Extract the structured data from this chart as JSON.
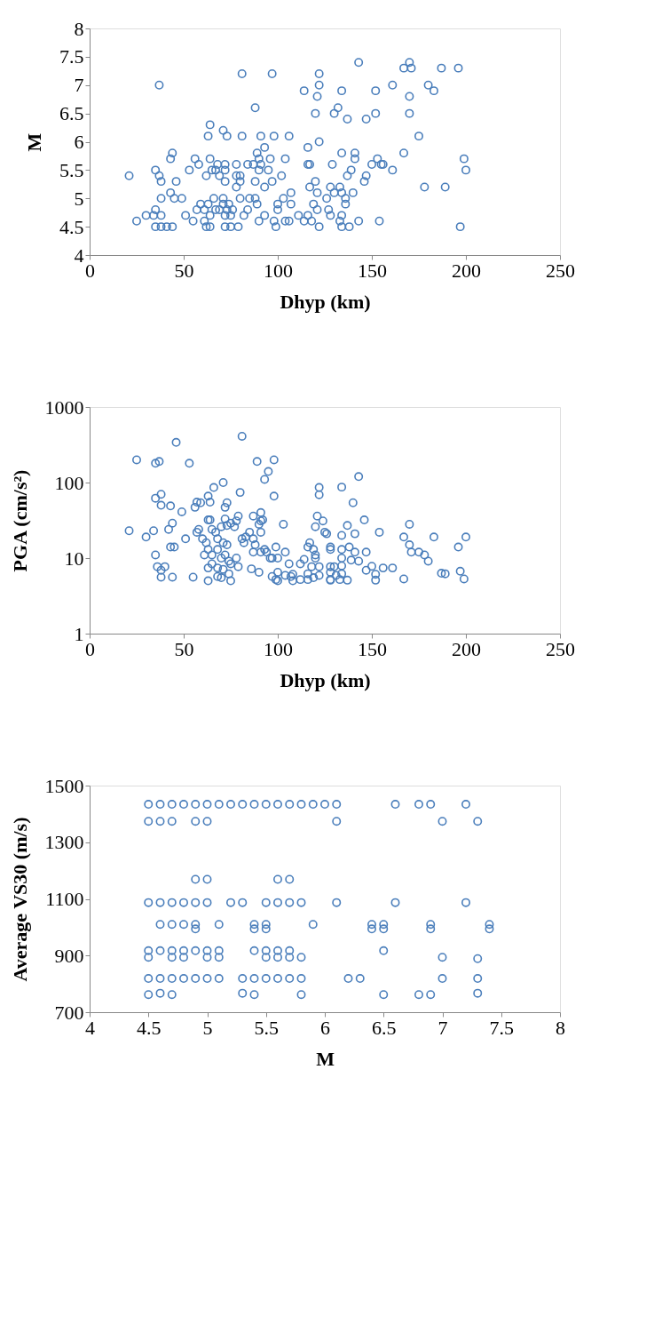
{
  "chart_data": [
    {
      "type": "scatter",
      "xlabel": "Dhyp (km)",
      "ylabel": "M",
      "color": "#4a7ebb",
      "marker": "circle",
      "xlim": [
        0,
        250
      ],
      "xticks": [
        0,
        50,
        100,
        150,
        200,
        250
      ],
      "ylim": [
        4,
        8
      ],
      "yticks": [
        4,
        4.5,
        5,
        5.5,
        6,
        6.5,
        7,
        7.5,
        8
      ],
      "x": [
        37,
        81,
        97,
        122,
        122,
        114,
        121,
        120,
        88,
        64,
        63,
        71,
        73,
        81,
        91,
        98,
        106,
        122,
        116,
        93,
        44,
        43,
        56,
        58,
        64,
        53,
        35,
        37,
        21,
        38,
        46,
        43,
        38,
        45,
        49,
        35,
        30,
        34,
        38,
        25,
        35,
        38,
        41,
        44,
        51,
        55,
        57,
        59,
        63,
        66,
        62,
        65,
        67,
        68,
        72,
        72,
        72,
        69,
        78,
        78,
        80,
        80,
        78,
        84,
        87,
        90,
        89,
        90,
        91,
        95,
        96,
        88,
        93,
        97,
        102,
        104,
        61,
        61,
        62,
        64,
        64,
        67,
        69,
        71,
        71,
        72,
        72,
        73,
        74,
        75,
        76,
        75,
        79,
        80,
        82,
        84,
        85,
        88,
        89,
        90,
        93,
        98,
        99,
        100,
        100,
        103,
        107,
        107,
        104,
        106,
        111,
        114,
        116,
        118,
        119,
        121,
        122,
        121,
        120,
        117,
        116,
        117,
        143,
        170,
        167,
        171,
        187,
        196,
        134,
        152,
        161,
        180,
        183,
        170,
        132,
        130,
        137,
        147,
        152,
        170,
        175,
        134,
        141,
        141,
        129,
        167,
        153,
        150,
        155,
        156,
        161,
        139,
        137,
        147,
        146,
        199,
        200,
        178,
        189,
        128,
        133,
        130,
        134,
        140,
        136,
        136,
        126,
        127,
        128,
        134,
        133,
        134,
        138,
        143,
        154,
        197
      ],
      "values": [
        7.0,
        7.2,
        7.2,
        7.2,
        7.0,
        6.9,
        6.8,
        6.5,
        6.6,
        6.3,
        6.1,
        6.2,
        6.1,
        6.1,
        6.1,
        6.1,
        6.1,
        6.0,
        5.9,
        5.9,
        5.8,
        5.7,
        5.7,
        5.6,
        5.7,
        5.5,
        5.5,
        5.4,
        5.4,
        5.3,
        5.3,
        5.1,
        5.0,
        5.0,
        5.0,
        4.8,
        4.7,
        4.7,
        4.7,
        4.6,
        4.5,
        4.5,
        4.5,
        4.5,
        4.7,
        4.6,
        4.8,
        4.9,
        4.9,
        5.0,
        5.4,
        5.5,
        5.5,
        5.6,
        5.6,
        5.5,
        5.3,
        5.4,
        5.6,
        5.4,
        5.4,
        5.3,
        5.2,
        5.6,
        5.6,
        5.7,
        5.8,
        5.5,
        5.6,
        5.5,
        5.7,
        5.3,
        5.2,
        5.3,
        5.4,
        5.7,
        4.8,
        4.6,
        4.5,
        4.7,
        4.5,
        4.8,
        4.8,
        5.0,
        4.9,
        4.7,
        4.5,
        4.8,
        4.9,
        4.7,
        4.8,
        4.5,
        4.5,
        5.0,
        4.7,
        4.8,
        5.0,
        5.0,
        4.9,
        4.6,
        4.7,
        4.6,
        4.5,
        4.8,
        4.9,
        5.0,
        5.1,
        4.9,
        4.6,
        4.6,
        4.7,
        4.6,
        4.7,
        4.6,
        4.9,
        4.8,
        4.5,
        5.1,
        5.3,
        5.2,
        5.6,
        5.6,
        7.4,
        7.4,
        7.3,
        7.3,
        7.3,
        7.3,
        6.9,
        6.9,
        7.0,
        7.0,
        6.9,
        6.8,
        6.6,
        6.5,
        6.4,
        6.4,
        6.5,
        6.5,
        6.1,
        5.8,
        5.8,
        5.7,
        5.6,
        5.8,
        5.7,
        5.6,
        5.6,
        5.6,
        5.5,
        5.5,
        5.4,
        5.4,
        5.3,
        5.7,
        5.5,
        5.2,
        5.2,
        5.2,
        5.2,
        5.1,
        5.1,
        5.1,
        5.0,
        4.9,
        5.0,
        4.8,
        4.7,
        4.7,
        4.6,
        4.5,
        4.5,
        4.6,
        4.6,
        4.5
      ]
    },
    {
      "type": "scatter",
      "xlabel": "Dhyp (km)",
      "ylabel": "PGA (cm/s²)",
      "color": "#4a7ebb",
      "marker": "circle",
      "log": "y",
      "xlim": [
        0,
        250
      ],
      "xticks": [
        0,
        50,
        100,
        150,
        200,
        250
      ],
      "ylim": [
        1,
        1000
      ],
      "yticks": [
        1,
        10,
        100,
        1000
      ],
      "x": [
        21,
        25,
        30,
        34,
        35,
        37,
        46,
        53,
        35,
        38,
        38,
        43,
        49,
        42,
        44,
        43,
        45,
        51,
        35,
        36,
        38,
        40,
        38,
        44,
        55,
        57,
        59,
        56,
        63,
        64,
        66,
        71,
        73,
        72,
        80,
        81,
        89,
        98,
        95,
        93,
        98,
        57,
        58,
        60,
        62,
        63,
        64,
        65,
        67,
        68,
        70,
        72,
        73,
        75,
        77,
        78,
        79,
        71,
        73,
        61,
        63,
        65,
        68,
        70,
        72,
        74,
        75,
        78,
        79,
        65,
        68,
        71,
        74,
        63,
        68,
        70,
        75,
        63,
        81,
        82,
        83,
        85,
        87,
        91,
        91,
        90,
        92,
        91,
        87,
        88,
        87,
        91,
        93,
        94,
        97,
        99,
        100,
        104,
        103,
        86,
        90,
        96,
        97,
        99,
        100,
        100,
        104,
        106,
        107,
        108,
        108,
        112,
        112,
        114,
        116,
        117,
        119,
        120,
        120,
        118,
        122,
        116,
        116,
        119,
        122,
        122,
        122,
        121,
        124,
        120,
        125,
        126,
        128,
        128,
        128,
        128,
        128,
        143,
        134,
        140,
        146,
        137,
        134,
        141,
        154,
        170,
        167,
        170,
        171,
        175,
        178,
        180,
        183,
        196,
        200,
        197,
        199,
        187,
        189,
        167,
        161,
        156,
        152,
        152,
        150,
        147,
        137,
        133,
        128,
        134,
        138,
        141,
        147,
        143,
        139,
        134,
        134,
        130,
        134,
        131
      ],
      "values": [
        23,
        200,
        19,
        23,
        180,
        190,
        340,
        180,
        62,
        70,
        50,
        49,
        41,
        24,
        29,
        14,
        14,
        18,
        11,
        7.7,
        6.9,
        7.7,
        5.6,
        5.6,
        5.6,
        55,
        54,
        47,
        66,
        55,
        86,
        100,
        54,
        47,
        74,
        410,
        190,
        200,
        140,
        110,
        66,
        22,
        24,
        18,
        16,
        32,
        32,
        24,
        22,
        18,
        26,
        33,
        27,
        29,
        26,
        31,
        36,
        16,
        15,
        11,
        13,
        11,
        13,
        10,
        11,
        9.1,
        8.4,
        10,
        7.7,
        8.4,
        7.4,
        7.1,
        6.2,
        5.0,
        5.7,
        5.5,
        5.0,
        7.4,
        18,
        16,
        19,
        22,
        36,
        40,
        31,
        28,
        32,
        22,
        18,
        15,
        12,
        12,
        13,
        12,
        10,
        14,
        10,
        12,
        28,
        7.2,
        6.5,
        10,
        5.7,
        5.2,
        6.5,
        5.0,
        5.9,
        8.4,
        5.7,
        5.0,
        6.1,
        8.4,
        5.2,
        9.6,
        14,
        16,
        13,
        11,
        10,
        7.7,
        7.7,
        6.2,
        5.2,
        5.5,
        5.9,
        86,
        69,
        36,
        31,
        26,
        22,
        21,
        14,
        13,
        6.5,
        5.2,
        7.7,
        120,
        87,
        54,
        32,
        27,
        20,
        21,
        22,
        28,
        19,
        15,
        12,
        12,
        11,
        9.1,
        19,
        14,
        19,
        6.7,
        5.3,
        6.3,
        6.2,
        5.3,
        7.4,
        7.4,
        6.1,
        5.1,
        7.8,
        6.9,
        5.1,
        5.2,
        5.1,
        13,
        14,
        12,
        12,
        9.1,
        9.4,
        10,
        7.9,
        7.7,
        6.2,
        5.9
      ]
    },
    {
      "type": "scatter",
      "xlabel": "M",
      "ylabel": "Average VS30 (m/s)",
      "color": "#4a7ebb",
      "marker": "circle",
      "xlim": [
        4,
        8
      ],
      "xticks": [
        4,
        4.5,
        5,
        5.5,
        6,
        6.5,
        7,
        7.5,
        8
      ],
      "ylim": [
        700,
        1500
      ],
      "yticks": [
        700,
        900,
        1100,
        1300,
        1500
      ],
      "x": [
        4.5,
        4.6,
        4.7,
        4.8,
        4.9,
        5.0,
        5.1,
        5.2,
        5.3,
        5.4,
        5.5,
        5.6,
        5.7,
        5.8,
        5.9,
        6.0,
        6.1,
        6.6,
        6.8,
        6.9,
        7.2,
        4.5,
        4.6,
        4.7,
        4.9,
        5.0,
        6.1,
        7.0,
        7.3,
        4.9,
        5.0,
        5.6,
        5.7,
        4.5,
        4.6,
        4.7,
        4.8,
        4.9,
        5.0,
        5.2,
        5.3,
        5.5,
        5.6,
        5.7,
        5.8,
        6.1,
        6.6,
        7.2,
        4.6,
        4.7,
        4.8,
        4.9,
        5.1,
        5.4,
        5.5,
        5.9,
        6.4,
        6.5,
        6.9,
        7.4,
        4.9,
        5.4,
        5.5,
        6.4,
        6.5,
        6.9,
        7.4,
        4.5,
        4.6,
        4.7,
        4.8,
        4.9,
        5.0,
        5.1,
        5.4,
        5.5,
        5.6,
        5.7,
        6.5,
        4.5,
        4.7,
        4.8,
        5.0,
        5.1,
        5.5,
        5.6,
        5.7,
        5.8,
        7.0,
        7.3,
        4.5,
        4.6,
        4.7,
        4.8,
        4.9,
        5.0,
        5.1,
        5.3,
        5.4,
        5.5,
        5.6,
        5.7,
        5.8,
        6.2,
        6.3,
        7.0,
        7.3,
        4.5,
        4.6,
        4.7,
        5.3,
        5.4,
        5.8,
        6.5,
        6.8,
        6.9,
        7.3
      ],
      "values": [
        1434,
        1434,
        1434,
        1434,
        1434,
        1434,
        1434,
        1434,
        1434,
        1434,
        1434,
        1434,
        1434,
        1434,
        1434,
        1434,
        1434,
        1434,
        1434,
        1434,
        1434,
        1374,
        1374,
        1374,
        1374,
        1374,
        1374,
        1374,
        1374,
        1169,
        1169,
        1169,
        1169,
        1087,
        1087,
        1087,
        1087,
        1087,
        1087,
        1087,
        1087,
        1087,
        1087,
        1087,
        1087,
        1087,
        1087,
        1087,
        1010,
        1010,
        1010,
        1010,
        1010,
        1010,
        1010,
        1010,
        1010,
        1010,
        1010,
        1010,
        994,
        994,
        994,
        994,
        994,
        994,
        994,
        917,
        917,
        917,
        917,
        917,
        917,
        917,
        917,
        917,
        917,
        917,
        917,
        894,
        894,
        894,
        894,
        894,
        894,
        894,
        894,
        894,
        894,
        889,
        819,
        819,
        819,
        819,
        819,
        819,
        819,
        819,
        819,
        819,
        819,
        819,
        819,
        819,
        819,
        819,
        819,
        762,
        767,
        762,
        767,
        762,
        762,
        762,
        762,
        762,
        767
      ]
    }
  ]
}
